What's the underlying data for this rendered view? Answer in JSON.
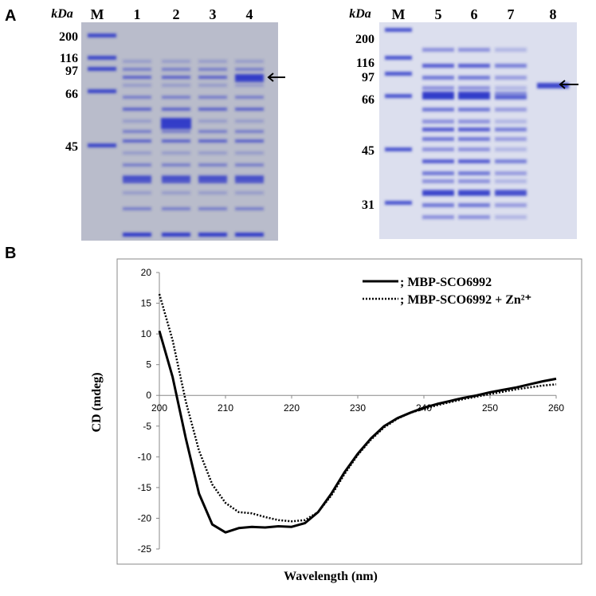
{
  "panel_a": {
    "label": "A",
    "left_gel": {
      "unit": "kDa",
      "lanes": [
        "M",
        "1",
        "2",
        "3",
        "4"
      ],
      "markers": [
        "200",
        "116",
        "97",
        "66",
        "45"
      ]
    },
    "right_gel": {
      "unit": "kDa",
      "lanes": [
        "M",
        "5",
        "6",
        "7",
        "8"
      ],
      "markers": [
        "200",
        "116",
        "97",
        "66",
        "45",
        "31"
      ]
    }
  },
  "panel_b": {
    "label": "B"
  },
  "chart_data": {
    "type": "line",
    "xlabel": "Wavelength (nm)",
    "ylabel": "CD (mdeg)",
    "x": [
      200,
      202,
      204,
      206,
      208,
      210,
      212,
      214,
      216,
      218,
      220,
      222,
      224,
      226,
      228,
      230,
      232,
      234,
      236,
      238,
      240,
      242,
      244,
      246,
      248,
      250,
      252,
      254,
      256,
      258,
      260
    ],
    "series": [
      {
        "name": "; MBP-SCO6992",
        "color": "#000000",
        "style": "solid",
        "values": [
          10.5,
          3,
          -7,
          -16,
          -21,
          -22.3,
          -21.6,
          -21.4,
          -21.5,
          -21.3,
          -21.4,
          -20.8,
          -19,
          -16,
          -12.5,
          -9.5,
          -7,
          -5,
          -3.7,
          -2.8,
          -2,
          -1.4,
          -0.9,
          -0.4,
          0,
          0.5,
          0.9,
          1.3,
          1.8,
          2.3,
          2.7
        ]
      },
      {
        "name": "; MBP-SCO6992 + Zn²⁺",
        "color": "#000000",
        "style": "dotted",
        "values": [
          16.5,
          9,
          -1,
          -9,
          -14.5,
          -17.5,
          -19,
          -19.2,
          -19.8,
          -20.3,
          -20.5,
          -20.3,
          -19,
          -16.3,
          -12.8,
          -9.7,
          -7.2,
          -5.2,
          -3.8,
          -2.8,
          -2.2,
          -1.6,
          -1.1,
          -0.6,
          -0.2,
          0.2,
          0.6,
          1,
          1.3,
          1.6,
          1.8
        ]
      }
    ],
    "xlim": [
      200,
      260
    ],
    "ylim": [
      -25,
      20
    ],
    "xticks": [
      200,
      210,
      220,
      230,
      240,
      250,
      260
    ],
    "yticks": [
      -25,
      -20,
      -15,
      -10,
      -5,
      0,
      5,
      10,
      15,
      20
    ],
    "legend": "upper right",
    "grid": false
  }
}
